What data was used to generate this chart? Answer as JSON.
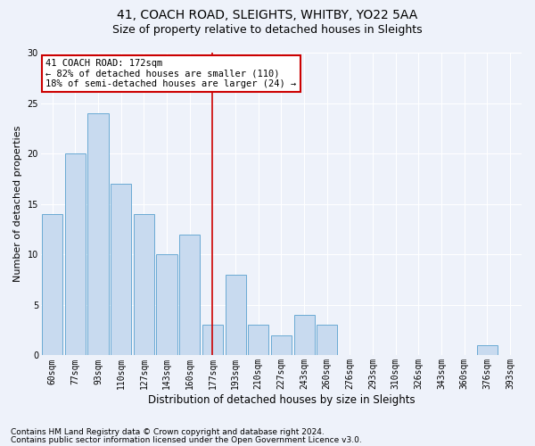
{
  "title1": "41, COACH ROAD, SLEIGHTS, WHITBY, YO22 5AA",
  "title2": "Size of property relative to detached houses in Sleights",
  "xlabel": "Distribution of detached houses by size in Sleights",
  "ylabel": "Number of detached properties",
  "categories": [
    "60sqm",
    "77sqm",
    "93sqm",
    "110sqm",
    "127sqm",
    "143sqm",
    "160sqm",
    "177sqm",
    "193sqm",
    "210sqm",
    "227sqm",
    "243sqm",
    "260sqm",
    "276sqm",
    "293sqm",
    "310sqm",
    "326sqm",
    "343sqm",
    "360sqm",
    "376sqm",
    "393sqm"
  ],
  "values": [
    14,
    20,
    24,
    17,
    14,
    10,
    12,
    3,
    8,
    3,
    2,
    4,
    3,
    0,
    0,
    0,
    0,
    0,
    0,
    1,
    0
  ],
  "bar_color": "#c8daef",
  "bar_edge_color": "#6aaad4",
  "highlight_index": 7,
  "highlight_color": "#cc0000",
  "annotation_text": "41 COACH ROAD: 172sqm\n← 82% of detached houses are smaller (110)\n18% of semi-detached houses are larger (24) →",
  "annotation_box_color": "#ffffff",
  "annotation_box_edge_color": "#cc0000",
  "footnote1": "Contains HM Land Registry data © Crown copyright and database right 2024.",
  "footnote2": "Contains public sector information licensed under the Open Government Licence v3.0.",
  "ylim": [
    0,
    30
  ],
  "background_color": "#eef2fa",
  "plot_background": "#eef2fa",
  "grid_color": "#ffffff",
  "title1_fontsize": 10,
  "title2_fontsize": 9,
  "xlabel_fontsize": 8.5,
  "ylabel_fontsize": 8,
  "tick_fontsize": 7,
  "footnote_fontsize": 6.5,
  "annotation_fontsize": 7.5
}
